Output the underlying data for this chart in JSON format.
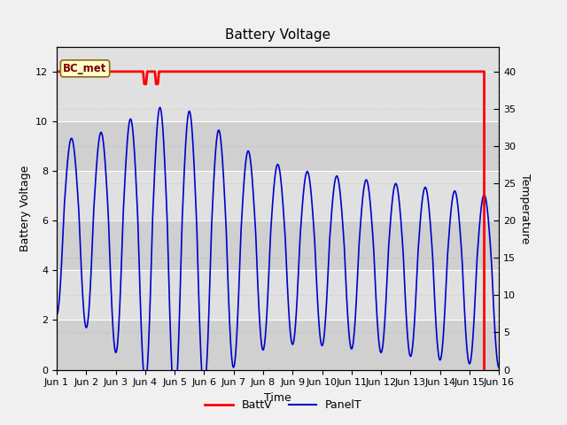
{
  "title": "Battery Voltage",
  "xlabel": "Time",
  "ylabel_left": "Battery Voltage",
  "ylabel_right": "Temperature",
  "ylim_left": [
    0,
    13
  ],
  "ylim_right": [
    0,
    43.3
  ],
  "yticks_left": [
    0,
    2,
    4,
    6,
    8,
    10,
    12
  ],
  "yticks_right": [
    0,
    5,
    10,
    15,
    20,
    25,
    30,
    35,
    40
  ],
  "x_tick_labels": [
    "Jun 1",
    "Jun 2",
    "Jun 3",
    "Jun 4",
    "Jun 5",
    "Jun 6",
    "Jun 7",
    "Jun 8",
    "Jun 9",
    "Jun 10",
    "Jun 11",
    "Jun 12",
    "Jun 13",
    "Jun 14",
    "Jun 15",
    "Jun 16"
  ],
  "fig_bg_color": "#f0f0f0",
  "plot_bg_color": "#d4d4d4",
  "stripe_light": "#e0e0e0",
  "stripe_dark": "#d0d0d0",
  "annotation_label": "BC_met",
  "annotation_bg": "#ffffcc",
  "annotation_border": "#8B6914",
  "annotation_text_color": "#800000",
  "battv_color": "#ff0000",
  "panelt_color": "#0000cc",
  "legend_battv": "BattV",
  "legend_panelt": "PanelT",
  "title_fontsize": 11,
  "axis_fontsize": 9,
  "tick_fontsize": 8
}
